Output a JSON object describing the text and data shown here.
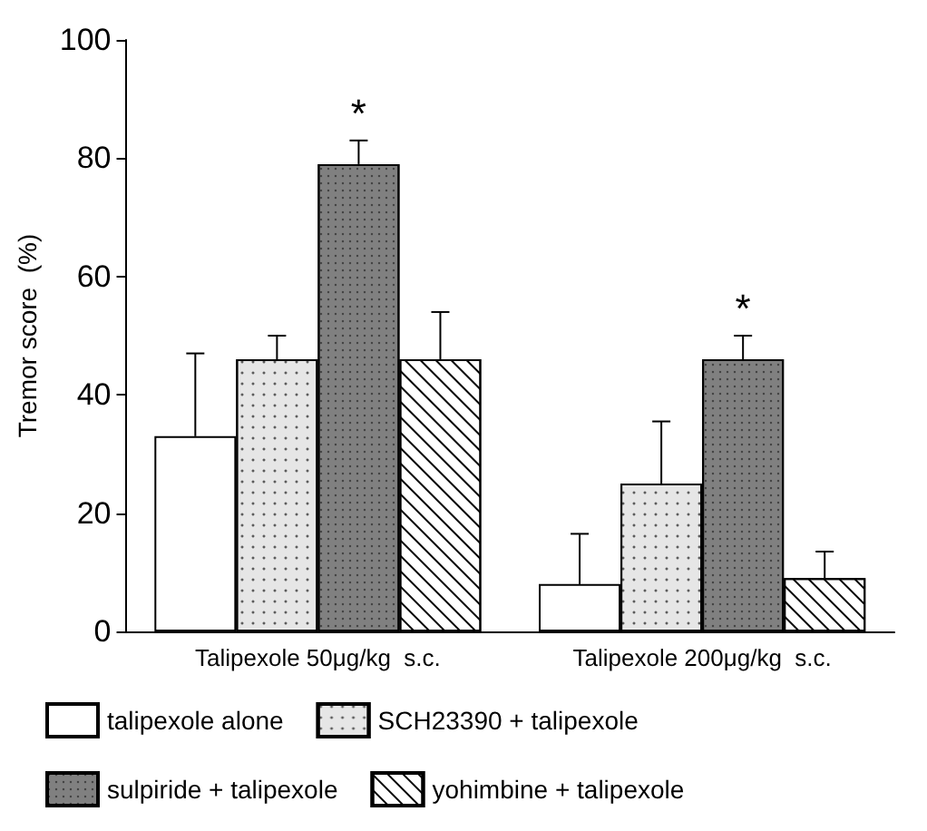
{
  "chart_data": {
    "type": "bar",
    "ylabel": "Tremor score  (%)",
    "categories": [
      "Talipexole 50μg/kg  s.c.",
      "Talipexole 200μg/kg  s.c."
    ],
    "series": [
      {
        "name": "talipexole alone",
        "color": "#ffffff",
        "values": [
          33,
          8
        ],
        "errors": [
          14,
          8.5
        ]
      },
      {
        "name": "SCH23390 + talipexole",
        "color": "#e6e6e6",
        "values": [
          46,
          25
        ],
        "errors": [
          4,
          10.5
        ]
      },
      {
        "name": "sulpiride + talipexole",
        "color": "#808080",
        "values": [
          79,
          46
        ],
        "errors": [
          4,
          4
        ]
      },
      {
        "name": "yohimbine + talipexole",
        "color": "#ffffff",
        "values": [
          46,
          9
        ],
        "errors": [
          8,
          4.5
        ]
      }
    ],
    "ylim": [
      0,
      100
    ],
    "yticks": [
      0,
      20,
      40,
      60,
      80,
      100
    ],
    "grid": false,
    "legend": "bottom",
    "annotations": [
      "*",
      "*"
    ]
  }
}
